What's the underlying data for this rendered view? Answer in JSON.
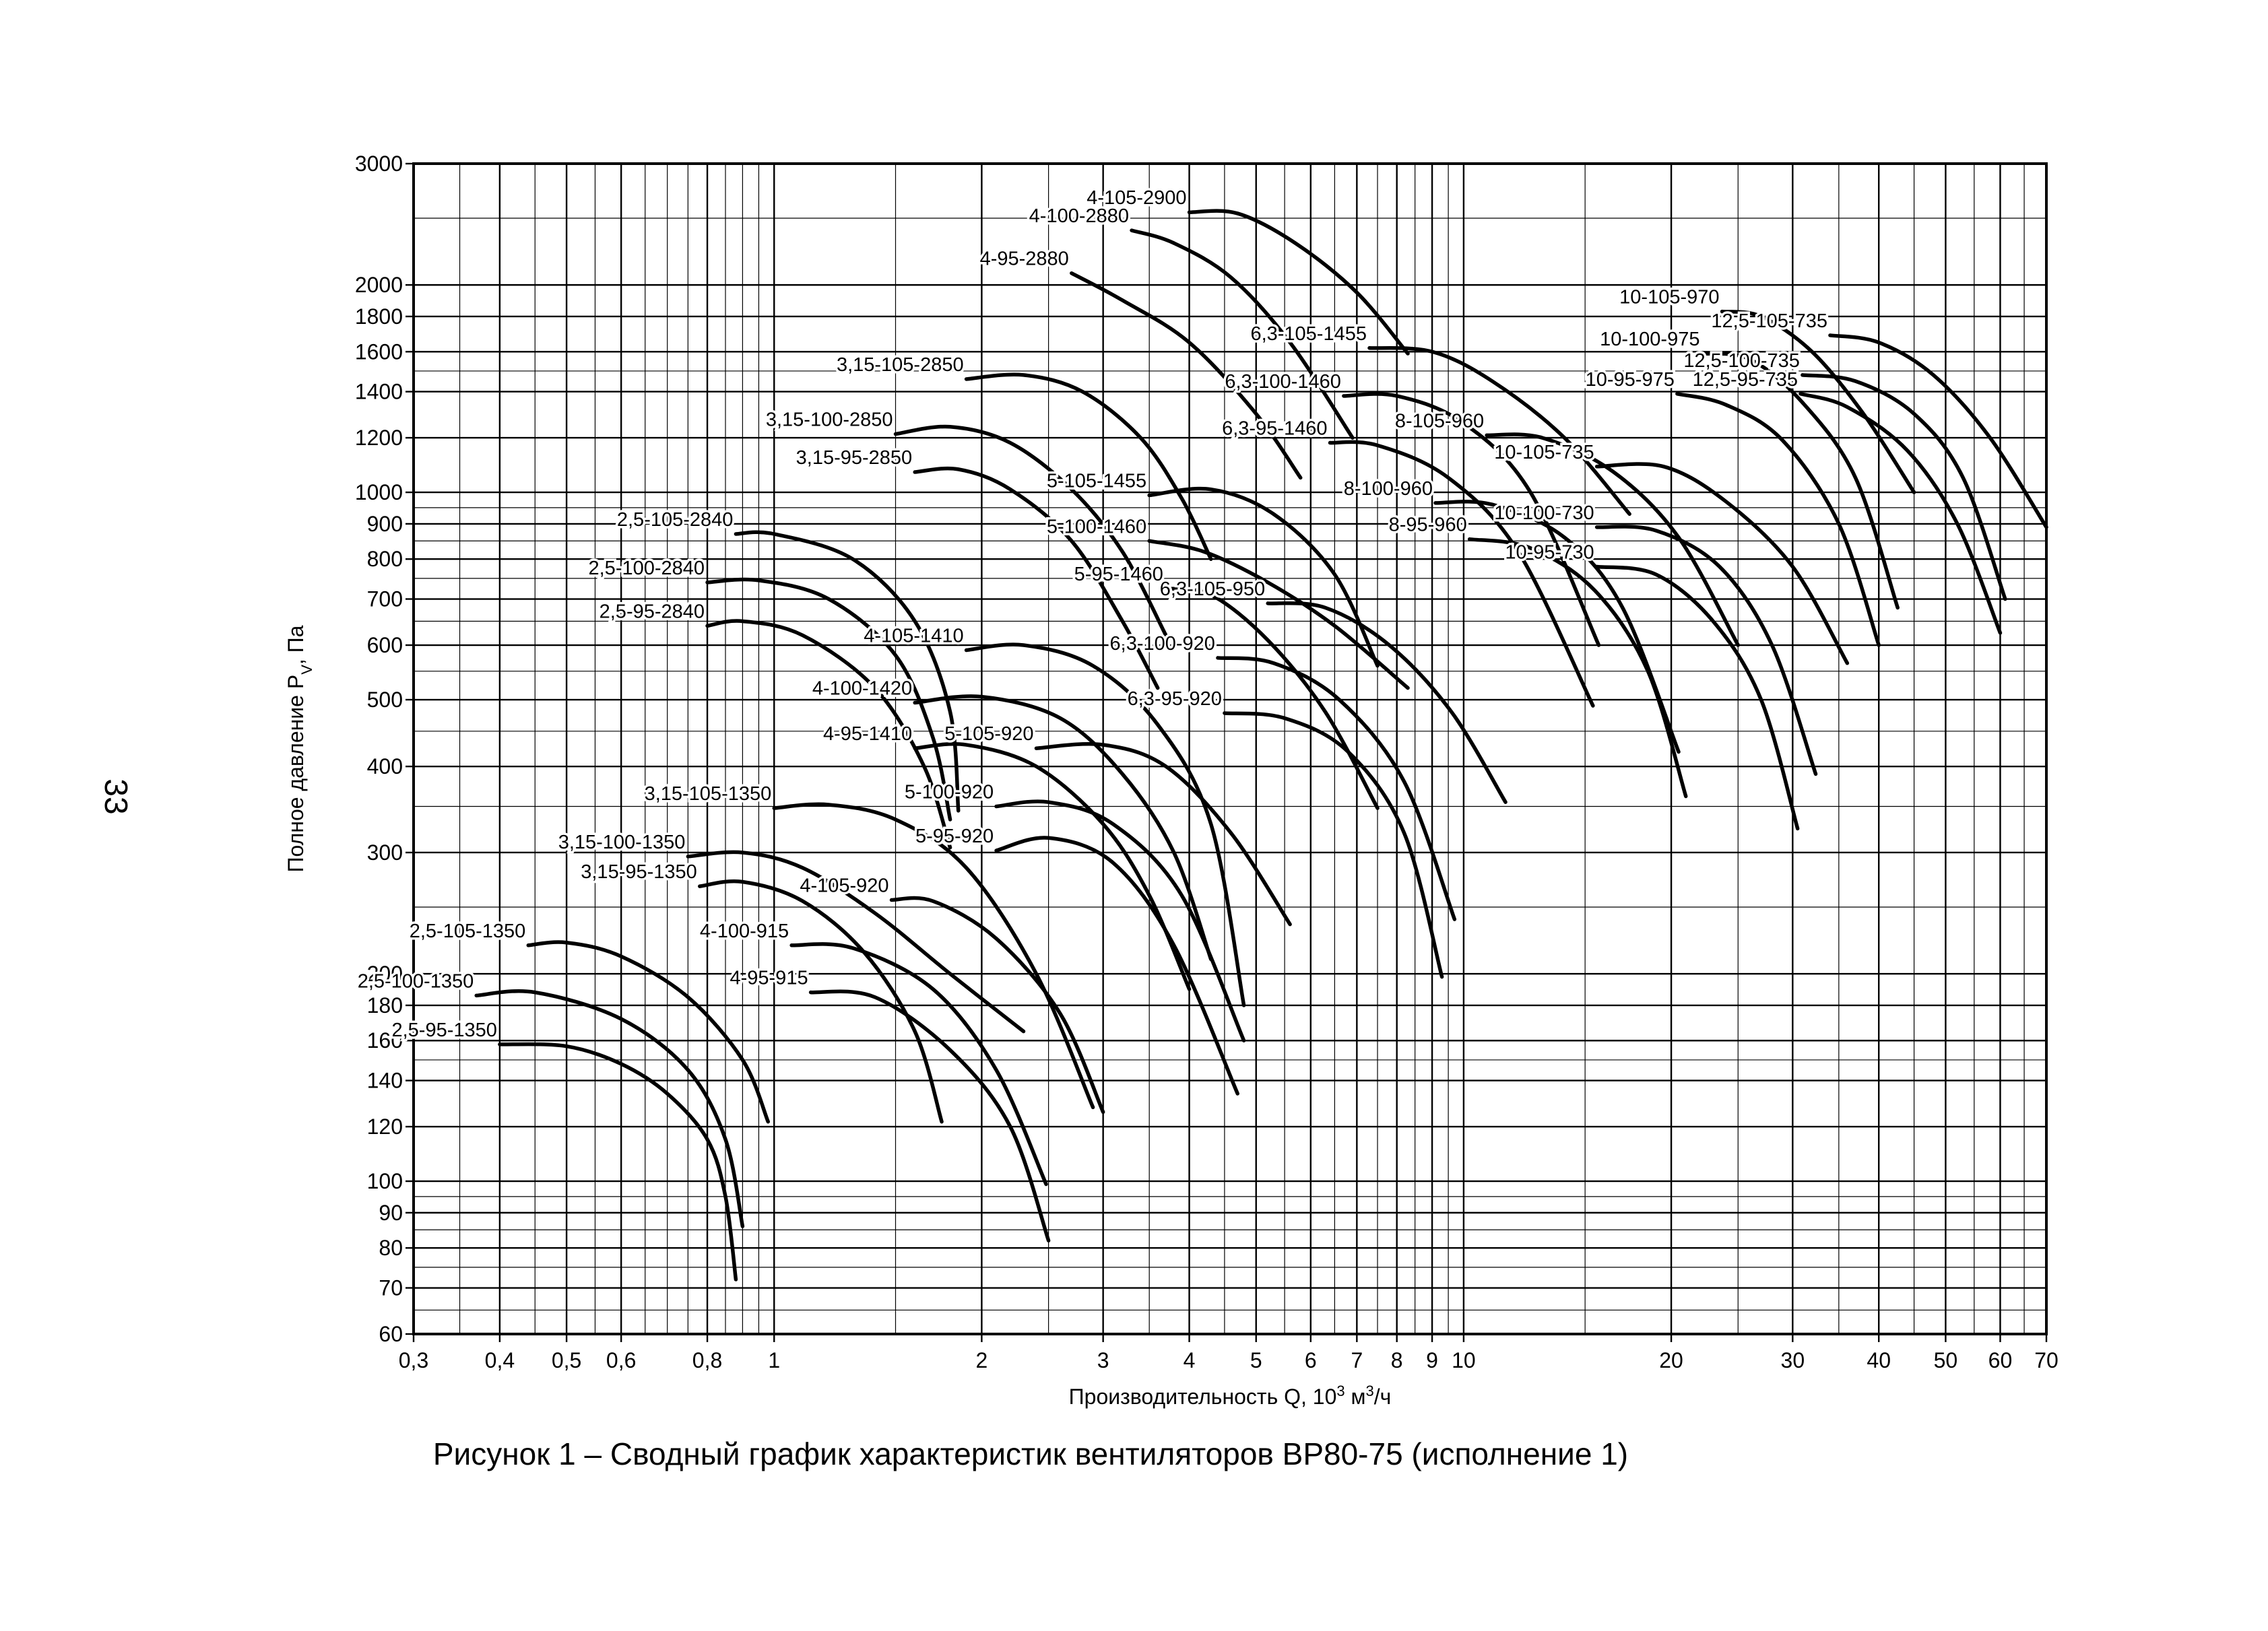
{
  "page_number": "33",
  "chart_data": {
    "type": "line",
    "caption": "Рисунок 1 – Сводный график характеристик вентиляторов ВР80-75 (исполнение 1)",
    "xlabel_parts": [
      "Производительность Q, 10",
      "3",
      " м",
      "3",
      "/ч"
    ],
    "ylabel_parts": [
      "Полное давление P",
      "V",
      ", Па"
    ],
    "xscale": "log",
    "yscale": "log",
    "grid": true,
    "color": "#000000",
    "xlim": [
      0.3,
      70
    ],
    "ylim": [
      60,
      3000
    ],
    "xticks": [
      {
        "value": 0.3,
        "label": "0,3"
      },
      {
        "value": 0.4,
        "label": "0,4"
      },
      {
        "value": 0.5,
        "label": "0,5"
      },
      {
        "value": 0.6,
        "label": "0,6"
      },
      {
        "value": 0.8,
        "label": "0,8"
      },
      1,
      2,
      3,
      4,
      5,
      6,
      7,
      8,
      9,
      10,
      20,
      30,
      40,
      50,
      60,
      70
    ],
    "yticks": [
      60,
      70,
      80,
      90,
      100,
      120,
      140,
      160,
      180,
      200,
      300,
      400,
      500,
      600,
      700,
      800,
      900,
      1000,
      1200,
      1400,
      1600,
      1800,
      2000,
      3000
    ],
    "series": [
      {
        "name": "2,5-95-1350",
        "x": [
          0.4,
          0.5,
          0.6,
          0.7,
          0.8,
          0.85,
          0.88
        ],
        "values": [
          158,
          157,
          148,
          134,
          115,
          95,
          72
        ]
      },
      {
        "name": "2,5-100-1350",
        "x": [
          0.37,
          0.45,
          0.6,
          0.75,
          0.85,
          0.9
        ],
        "values": [
          186,
          188,
          172,
          145,
          115,
          86
        ]
      },
      {
        "name": "2,5-105-1350",
        "x": [
          0.44,
          0.5,
          0.6,
          0.75,
          0.9,
          0.98
        ],
        "values": [
          220,
          222,
          212,
          185,
          150,
          122
        ]
      },
      {
        "name": "2,5-95-2840",
        "x": [
          0.8,
          0.9,
          1.1,
          1.4,
          1.65,
          1.8
        ],
        "values": [
          640,
          650,
          620,
          520,
          400,
          305
        ]
      },
      {
        "name": "2,5-100-2840",
        "x": [
          0.8,
          0.95,
          1.2,
          1.5,
          1.7,
          1.8
        ],
        "values": [
          740,
          745,
          700,
          580,
          440,
          335
        ]
      },
      {
        "name": "2,5-105-2840",
        "x": [
          0.88,
          1,
          1.3,
          1.6,
          1.8,
          1.85
        ],
        "values": [
          870,
          870,
          800,
          650,
          480,
          345
        ]
      },
      {
        "name": "3,15-95-1350",
        "x": [
          0.78,
          0.9,
          1.1,
          1.35,
          1.6,
          1.75
        ],
        "values": [
          268,
          272,
          255,
          215,
          165,
          122
        ]
      },
      {
        "name": "3,15-100-1350",
        "x": [
          0.75,
          0.9,
          1.1,
          1.4,
          1.8,
          2.3
        ],
        "values": [
          296,
          300,
          285,
          245,
          200,
          165
        ]
      },
      {
        "name": "3,15-105-1350",
        "x": [
          1.0,
          1.2,
          1.5,
          1.9,
          2.4,
          2.9
        ],
        "values": [
          348,
          352,
          335,
          285,
          200,
          128
        ]
      },
      {
        "name": "3,15-95-2850",
        "x": [
          1.6,
          1.85,
          2.2,
          2.7,
          3.2,
          3.6
        ],
        "values": [
          1070,
          1080,
          1010,
          850,
          650,
          520
        ]
      },
      {
        "name": "3,15-100-2850",
        "x": [
          1.5,
          1.8,
          2.2,
          2.7,
          3.2,
          3.7
        ],
        "values": [
          1215,
          1245,
          1180,
          1010,
          820,
          620
        ]
      },
      {
        "name": "3,15-105-2850",
        "x": [
          1.9,
          2.3,
          2.8,
          3.4,
          3.9,
          4.3
        ],
        "values": [
          1460,
          1480,
          1400,
          1200,
          980,
          800
        ]
      },
      {
        "name": "4-95-2880",
        "x": [
          2.7,
          3.2,
          4,
          5,
          5.8
        ],
        "values": [
          2080,
          1900,
          1650,
          1300,
          1050
        ]
      },
      {
        "name": "4-100-2880",
        "x": [
          3.3,
          3.8,
          4.6,
          5.6,
          6.9
        ],
        "values": [
          2400,
          2300,
          2050,
          1650,
          1200
        ]
      },
      {
        "name": "4-105-2900",
        "x": [
          4,
          4.7,
          5.7,
          7,
          8.3
        ],
        "values": [
          2550,
          2540,
          2300,
          1950,
          1590
        ]
      },
      {
        "name": "4-95-1410",
        "x": [
          1.6,
          1.9,
          2.4,
          3,
          3.5,
          4
        ],
        "values": [
          425,
          430,
          400,
          330,
          260,
          190
        ]
      },
      {
        "name": "4-100-1420",
        "x": [
          1.6,
          2,
          2.6,
          3.2,
          3.8,
          4.3
        ],
        "values": [
          495,
          505,
          470,
          390,
          300,
          210
        ]
      },
      {
        "name": "4-105-1410",
        "x": [
          1.9,
          2.3,
          2.9,
          3.6,
          4.3,
          4.8
        ],
        "values": [
          590,
          600,
          560,
          460,
          330,
          180
        ]
      },
      {
        "name": "4-95-915",
        "x": [
          1.13,
          1.4,
          1.8,
          2.2,
          2.5
        ],
        "values": [
          188,
          185,
          155,
          120,
          82
        ]
      },
      {
        "name": "4-100-915",
        "x": [
          1.06,
          1.3,
          1.7,
          2.1,
          2.48
        ],
        "values": [
          220,
          218,
          190,
          145,
          99
        ]
      },
      {
        "name": "4-105-920",
        "x": [
          1.48,
          1.7,
          2.1,
          2.6,
          3.0
        ],
        "values": [
          256,
          255,
          225,
          175,
          126
        ]
      },
      {
        "name": "5-95-920",
        "x": [
          2.1,
          2.5,
          3.1,
          3.8,
          4.7
        ],
        "values": [
          302,
          315,
          290,
          220,
          134
        ]
      },
      {
        "name": "5-100-920",
        "x": [
          2.1,
          2.5,
          3.1,
          3.9,
          4.8
        ],
        "values": [
          350,
          355,
          330,
          260,
          160
        ]
      },
      {
        "name": "5-105-920",
        "x": [
          2.4,
          3,
          3.7,
          4.6,
          5.6
        ],
        "values": [
          425,
          430,
          400,
          320,
          236
        ]
      },
      {
        "name": "5-95-1460",
        "x": [
          3.7,
          4.3,
          5.2,
          6.3,
          7.5
        ],
        "values": [
          725,
          710,
          610,
          480,
          348
        ]
      },
      {
        "name": "5-100-1460",
        "x": [
          3.5,
          4.2,
          5.2,
          6.5,
          8.3
        ],
        "values": [
          850,
          820,
          740,
          640,
          520
        ]
      },
      {
        "name": "5-105-1455",
        "x": [
          3.5,
          4.3,
          5.3,
          6.5,
          7.5
        ],
        "values": [
          990,
          1010,
          930,
          760,
          560
        ]
      },
      {
        "name": "6,3-95-1460",
        "x": [
          6.4,
          7.5,
          9.5,
          12,
          15.4
        ],
        "values": [
          1180,
          1170,
          1050,
          820,
          490
        ]
      },
      {
        "name": "6,3-100-1460",
        "x": [
          6.7,
          8,
          10,
          12.5,
          15.7
        ],
        "values": [
          1380,
          1380,
          1260,
          1000,
          600
        ]
      },
      {
        "name": "6,3-105-1455",
        "x": [
          7.3,
          9,
          11,
          14,
          17.4
        ],
        "values": [
          1620,
          1600,
          1450,
          1200,
          930
        ]
      },
      {
        "name": "6,3-95-920",
        "x": [
          4.5,
          5.5,
          6.8,
          8.2,
          9.3
        ],
        "values": [
          478,
          470,
          420,
          320,
          198
        ]
      },
      {
        "name": "6,3-100-920",
        "x": [
          4.4,
          5.3,
          6.6,
          8.2,
          9.7
        ],
        "values": [
          575,
          565,
          500,
          380,
          240
        ]
      },
      {
        "name": "6,3-105-950",
        "x": [
          5.2,
          6.3,
          7.8,
          9.6,
          11.5
        ],
        "values": [
          690,
          680,
          600,
          480,
          355
        ]
      },
      {
        "name": "8-95-960",
        "x": [
          10.2,
          12.5,
          15.5,
          18.5,
          21
        ],
        "values": [
          855,
          830,
          720,
          550,
          362
        ]
      },
      {
        "name": "8-100-960",
        "x": [
          9.1,
          11,
          14,
          17,
          20.5
        ],
        "values": [
          965,
          960,
          860,
          680,
          420
        ]
      },
      {
        "name": "8-105-960",
        "x": [
          10.8,
          13,
          16.5,
          20.5,
          25
        ],
        "values": [
          1210,
          1200,
          1070,
          860,
          600
        ]
      },
      {
        "name": "10-95-730",
        "x": [
          15.6,
          19,
          23,
          27,
          30.5
        ],
        "values": [
          780,
          760,
          650,
          500,
          325
        ]
      },
      {
        "name": "10-100-730",
        "x": [
          15.6,
          19,
          23.5,
          28,
          32.4
        ],
        "values": [
          890,
          880,
          780,
          600,
          390
        ]
      },
      {
        "name": "10-105-735",
        "x": [
          15.6,
          19.5,
          24,
          30,
          36
        ],
        "values": [
          1090,
          1090,
          970,
          780,
          565
        ]
      },
      {
        "name": "10-95-975",
        "x": [
          20.4,
          24,
          29,
          35,
          40
        ],
        "values": [
          1390,
          1340,
          1190,
          900,
          600
        ]
      },
      {
        "name": "10-100-975",
        "x": [
          22.2,
          26,
          31,
          37,
          42.6
        ],
        "values": [
          1590,
          1560,
          1350,
          1050,
          680
        ]
      },
      {
        "name": "10-105-970",
        "x": [
          23.7,
          27,
          32,
          38,
          45
        ],
        "values": [
          1830,
          1800,
          1600,
          1300,
          1000
        ]
      },
      {
        "name": "12,5-95-735",
        "x": [
          30.8,
          36,
          44,
          52,
          60
        ],
        "values": [
          1390,
          1330,
          1150,
          900,
          625
        ]
      },
      {
        "name": "12,5-100-735",
        "x": [
          31,
          37,
          45,
          53,
          61
        ],
        "values": [
          1480,
          1450,
          1300,
          1050,
          700
        ]
      },
      {
        "name": "12,5-105-735",
        "x": [
          34,
          40,
          48,
          58,
          70
        ],
        "values": [
          1690,
          1650,
          1480,
          1200,
          890
        ]
      }
    ]
  }
}
